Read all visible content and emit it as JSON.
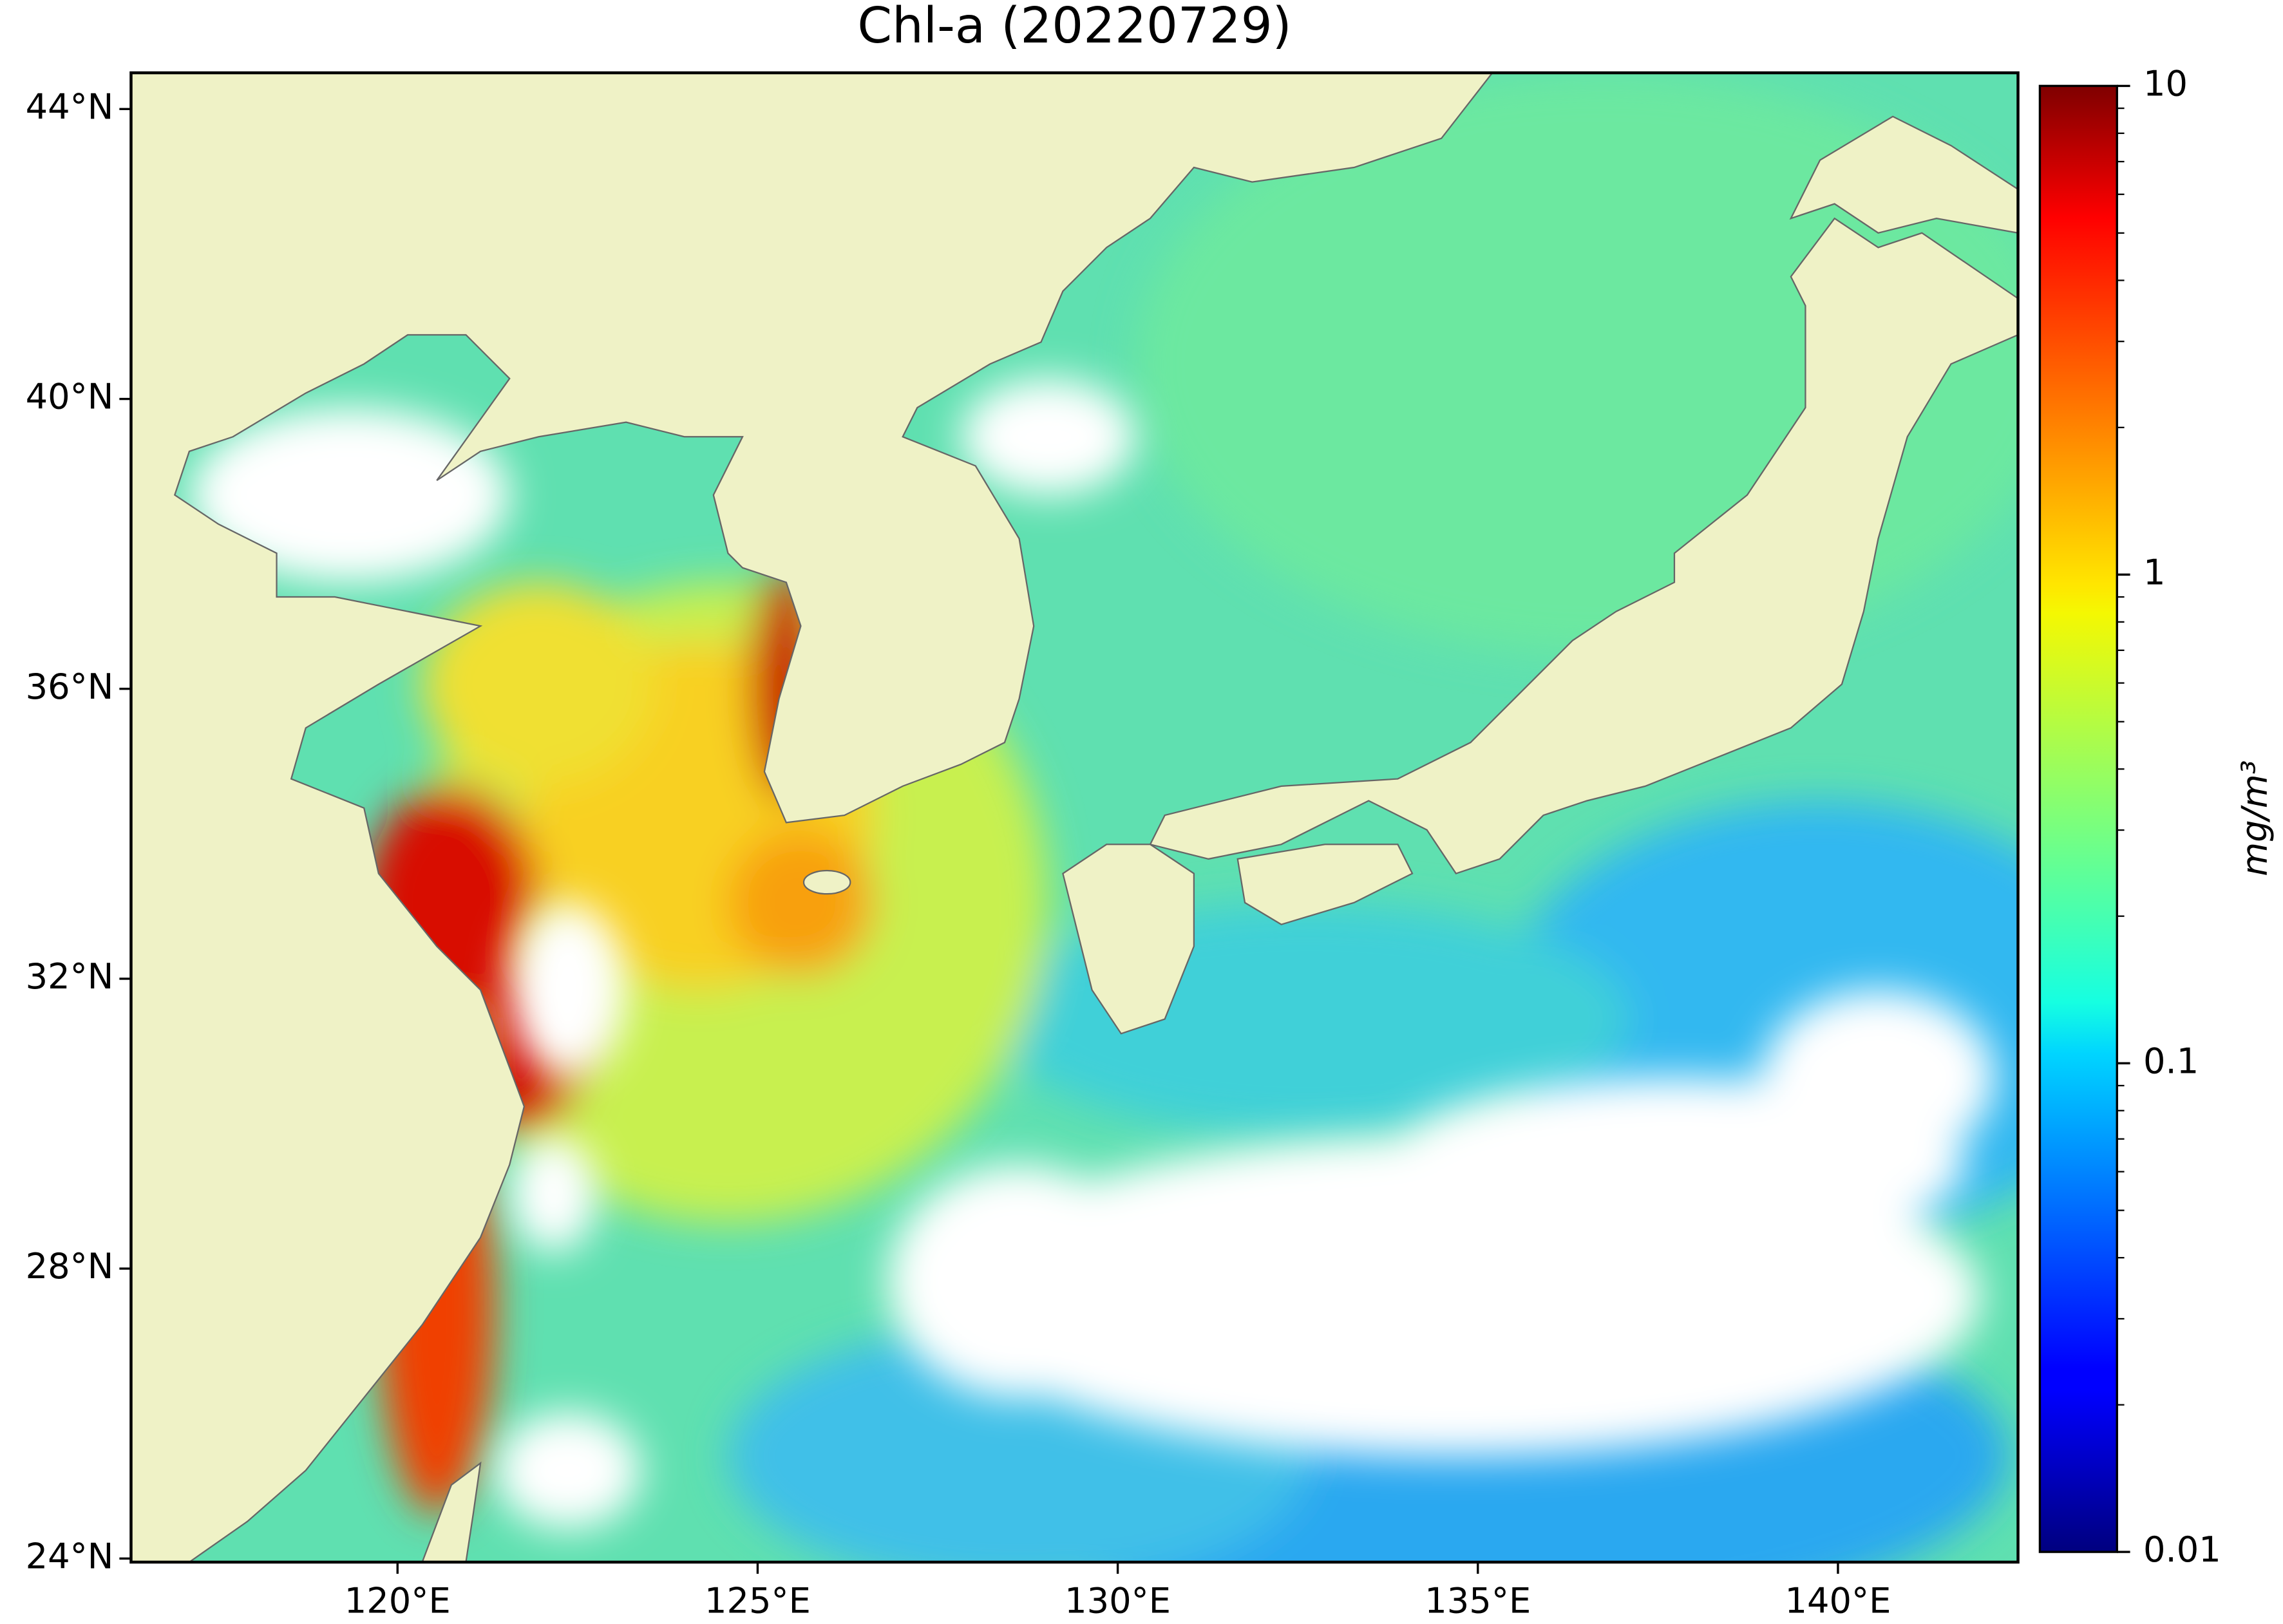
{
  "chart_data": {
    "type": "map",
    "title": "Chl-a (20220729)",
    "xlim": [
      116.3,
      142.5
    ],
    "ylim": [
      23.95,
      44.5
    ],
    "xticks": [
      {
        "value": 120,
        "label": "120°E"
      },
      {
        "value": 125,
        "label": "125°E"
      },
      {
        "value": 130,
        "label": "130°E"
      },
      {
        "value": 135,
        "label": "135°E"
      },
      {
        "value": 140,
        "label": "140°E"
      }
    ],
    "yticks": [
      {
        "value": 24,
        "label": "24°N"
      },
      {
        "value": 28,
        "label": "28°N"
      },
      {
        "value": 32,
        "label": "32°N"
      },
      {
        "value": 36,
        "label": "36°N"
      },
      {
        "value": 40,
        "label": "40°N"
      },
      {
        "value": 44,
        "label": "44°N"
      }
    ],
    "colorbar": {
      "label": "mg/m³",
      "lim": [
        0.01,
        10
      ],
      "ticks": [
        0.01,
        0.1,
        1,
        10
      ],
      "log": true,
      "colormap": "jet"
    }
  }
}
